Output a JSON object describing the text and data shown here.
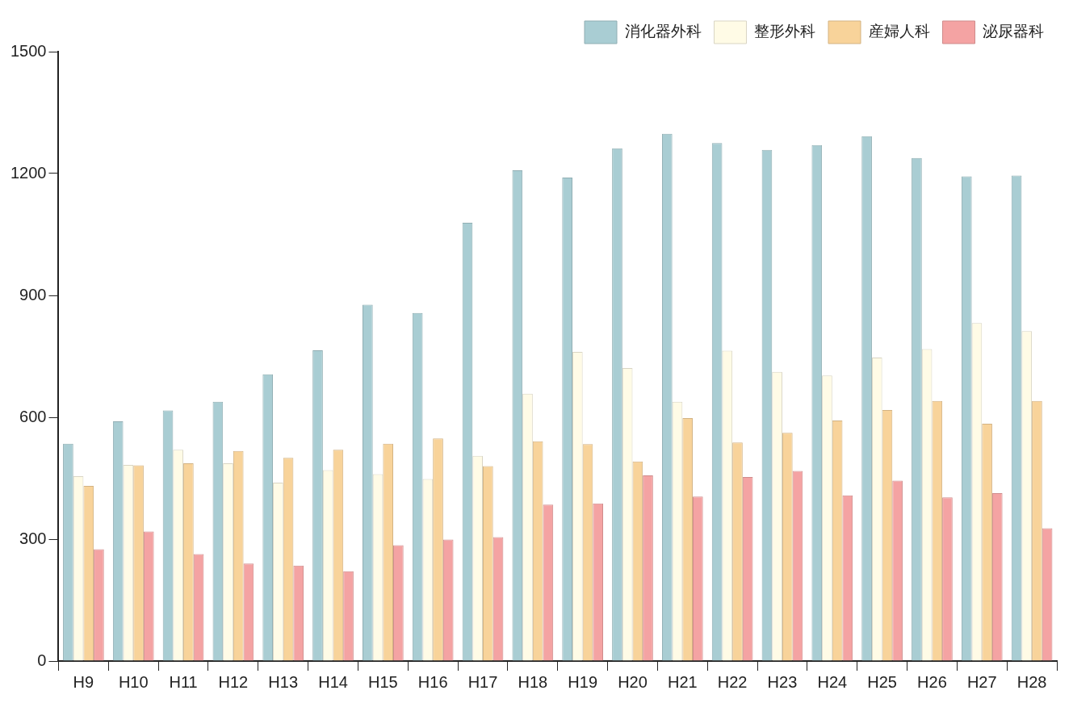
{
  "chart_data": {
    "type": "bar",
    "categories": [
      "H9",
      "H10",
      "H11",
      "H12",
      "H13",
      "H14",
      "H15",
      "H16",
      "H17",
      "H18",
      "H19",
      "H20",
      "H21",
      "H22",
      "H23",
      "H24",
      "H25",
      "H26",
      "H27",
      "H28"
    ],
    "series": [
      {
        "name": "消化器外科",
        "color": "#a9cdd3",
        "values": [
          535,
          590,
          617,
          638,
          706,
          765,
          877,
          857,
          1079,
          1208,
          1190,
          1262,
          1298,
          1275,
          1258,
          1270,
          1292,
          1238,
          1193,
          1195
        ]
      },
      {
        "name": "整形外科",
        "color": "#fffbe6",
        "values": [
          455,
          483,
          520,
          487,
          439,
          470,
          460,
          448,
          505,
          658,
          761,
          721,
          638,
          764,
          712,
          703,
          747,
          768,
          832,
          812
        ]
      },
      {
        "name": "産婦人科",
        "color": "#f8d39a",
        "values": [
          431,
          482,
          487,
          517,
          500,
          520,
          535,
          548,
          480,
          541,
          534,
          491,
          598,
          538,
          562,
          592,
          618,
          640,
          584,
          640
        ]
      },
      {
        "name": "泌尿器科",
        "color": "#f4a3a3",
        "values": [
          275,
          319,
          263,
          240,
          235,
          221,
          285,
          299,
          305,
          385,
          388,
          457,
          405,
          453,
          468,
          408,
          444,
          403,
          413,
          327
        ]
      }
    ],
    "ylim": [
      0,
      1500
    ],
    "yticks": [
      0,
      300,
      600,
      900,
      1200,
      1500
    ],
    "grid": false,
    "legend": "top right"
  }
}
